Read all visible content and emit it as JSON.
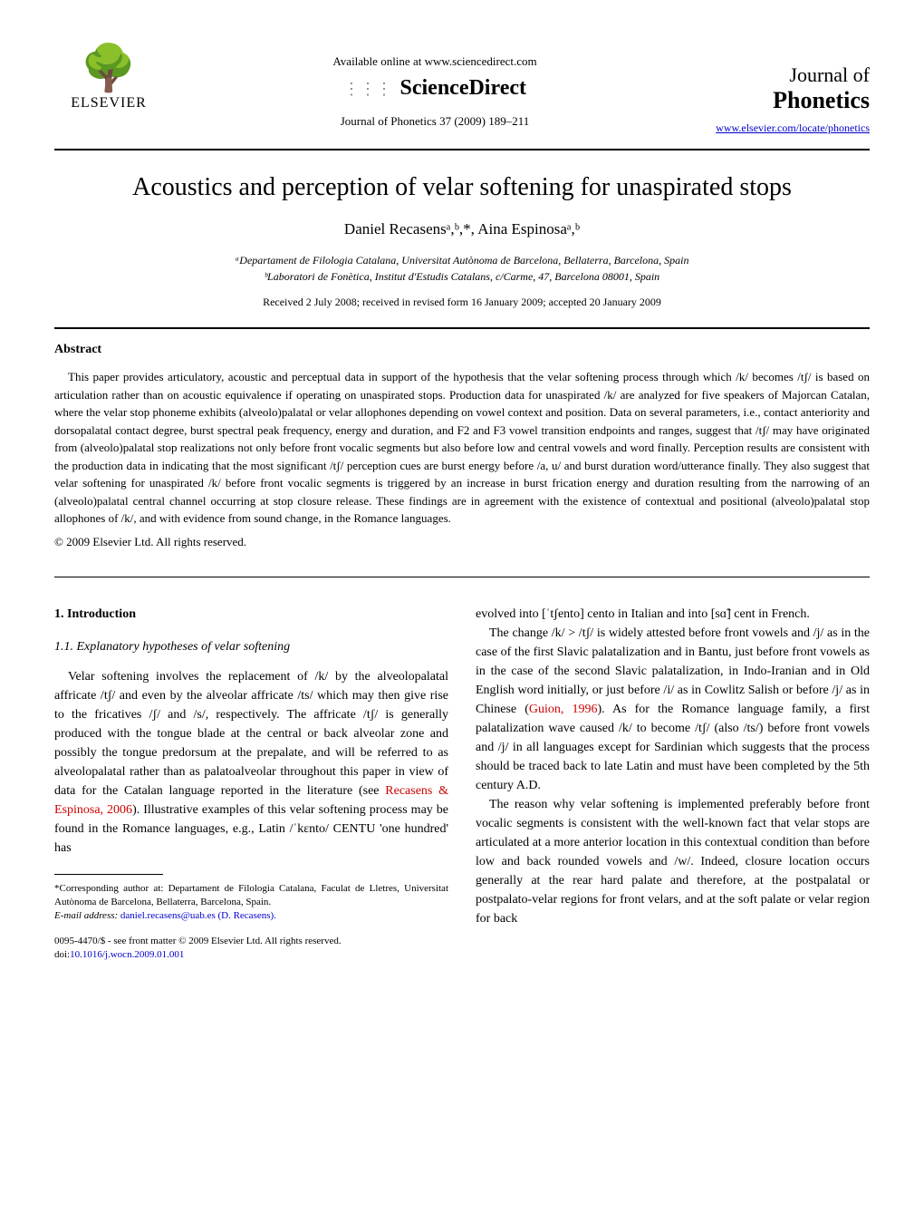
{
  "header": {
    "available_online": "Available online at www.sciencedirect.com",
    "science_direct": "ScienceDirect",
    "journal_ref": "Journal of Phonetics 37 (2009) 189–211",
    "publisher": "ELSEVIER",
    "journal_name_1": "Journal of",
    "journal_name_2": "Phonetics",
    "journal_url": "www.elsevier.com/locate/phonetics"
  },
  "article": {
    "title": "Acoustics and perception of velar softening for unaspirated stops",
    "authors": "Daniel Recasensᵃ,ᵇ,*, Aina Espinosaᵃ,ᵇ",
    "affiliation_a": "ᵃDepartament de Filologia Catalana, Universitat Autònoma de Barcelona, Bellaterra, Barcelona, Spain",
    "affiliation_b": "ᵇLaboratori de Fonètica, Institut d'Estudis Catalans, c/Carme, 47, Barcelona 08001, Spain",
    "dates": "Received 2 July 2008; received in revised form 16 January 2009; accepted 20 January 2009"
  },
  "abstract": {
    "heading": "Abstract",
    "text": "This paper provides articulatory, acoustic and perceptual data in support of the hypothesis that the velar softening process through which /k/ becomes /tʃ/ is based on articulation rather than on acoustic equivalence if operating on unaspirated stops. Production data for unaspirated /k/ are analyzed for five speakers of Majorcan Catalan, where the velar stop phoneme exhibits (alveolo)palatal or velar allophones depending on vowel context and position. Data on several parameters, i.e., contact anteriority and dorsopalatal contact degree, burst spectral peak frequency, energy and duration, and F2 and F3 vowel transition endpoints and ranges, suggest that /tʃ/ may have originated from (alveolo)palatal stop realizations not only before front vocalic segments but also before low and central vowels and word finally. Perception results are consistent with the production data in indicating that the most significant /tʃ/ perception cues are burst energy before /a, u/ and burst duration word/utterance finally. They also suggest that velar softening for unaspirated /k/ before front vocalic segments is triggered by an increase in burst frication energy and duration resulting from the narrowing of an (alveolo)palatal central channel occurring at stop closure release. These findings are in agreement with the existence of contextual and positional (alveolo)palatal stop allophones of /k/, and with evidence from sound change, in the Romance languages.",
    "copyright": "© 2009 Elsevier Ltd. All rights reserved."
  },
  "body": {
    "section1_heading": "1. Introduction",
    "section11_heading": "1.1. Explanatory hypotheses of velar softening",
    "col1_p1_a": "Velar softening involves the replacement of /k/ by the alveolopalatal affricate /tʃ/ and even by the alveolar affricate /ts/ which may then give rise to the fricatives /ʃ/ and /s/, respectively. The affricate /tʃ/ is generally produced with the tongue blade at the central or back alveolar zone and possibly the tongue predorsum at the prepalate, and will be referred to as alveolopalatal rather than as palatoalveolar throughout this paper in view of data for the Catalan language reported in the literature (see ",
    "col1_ref1": "Recasens & Espinosa, 2006",
    "col1_p1_b": "). Illustrative examples of this velar softening process may be found in the Romance languages, e.g., Latin /ˈkɛnto/ CENTU 'one hundred' has",
    "col2_p1": "evolved into [ˈtʃento] cento in Italian and into [sɑ̃] cent in French.",
    "col2_p2_a": "The change /k/ > /tʃ/ is widely attested before front vowels and /j/ as in the case of the first Slavic palatalization and in Bantu, just before front vowels as in the case of the second Slavic palatalization, in Indo-Iranian and in Old English word initially, or just before /i/ as in Cowlitz Salish or before /j/ as in Chinese (",
    "col2_ref1": "Guion, 1996",
    "col2_p2_b": "). As for the Romance language family, a first palatalization wave caused /k/ to become /tʃ/ (also /ts/) before front vowels and /j/ in all languages except for Sardinian which suggests that the process should be traced back to late Latin and must have been completed by the 5th century A.D.",
    "col2_p3": "The reason why velar softening is implemented preferably before front vocalic segments is consistent with the well-known fact that velar stops are articulated at a more anterior location in this contextual condition than before low and back rounded vowels and /w/. Indeed, closure location occurs generally at the rear hard palate and therefore, at the postpalatal or postpalato-velar regions for front velars, and at the soft palate or velar region for back"
  },
  "footnotes": {
    "corresponding": "*Corresponding author at: Departament de Filologia Catalana, Faculat de Lletres, Universitat Autònoma de Barcelona, Bellaterra, Barcelona, Spain.",
    "email_label": "E-mail address:",
    "email": "daniel.recasens@uab.es (D. Recasens).",
    "front_matter": "0095-4470/$ - see front matter © 2009 Elsevier Ltd. All rights reserved.",
    "doi_label": "doi:",
    "doi": "10.1016/j.wocn.2009.01.001"
  }
}
